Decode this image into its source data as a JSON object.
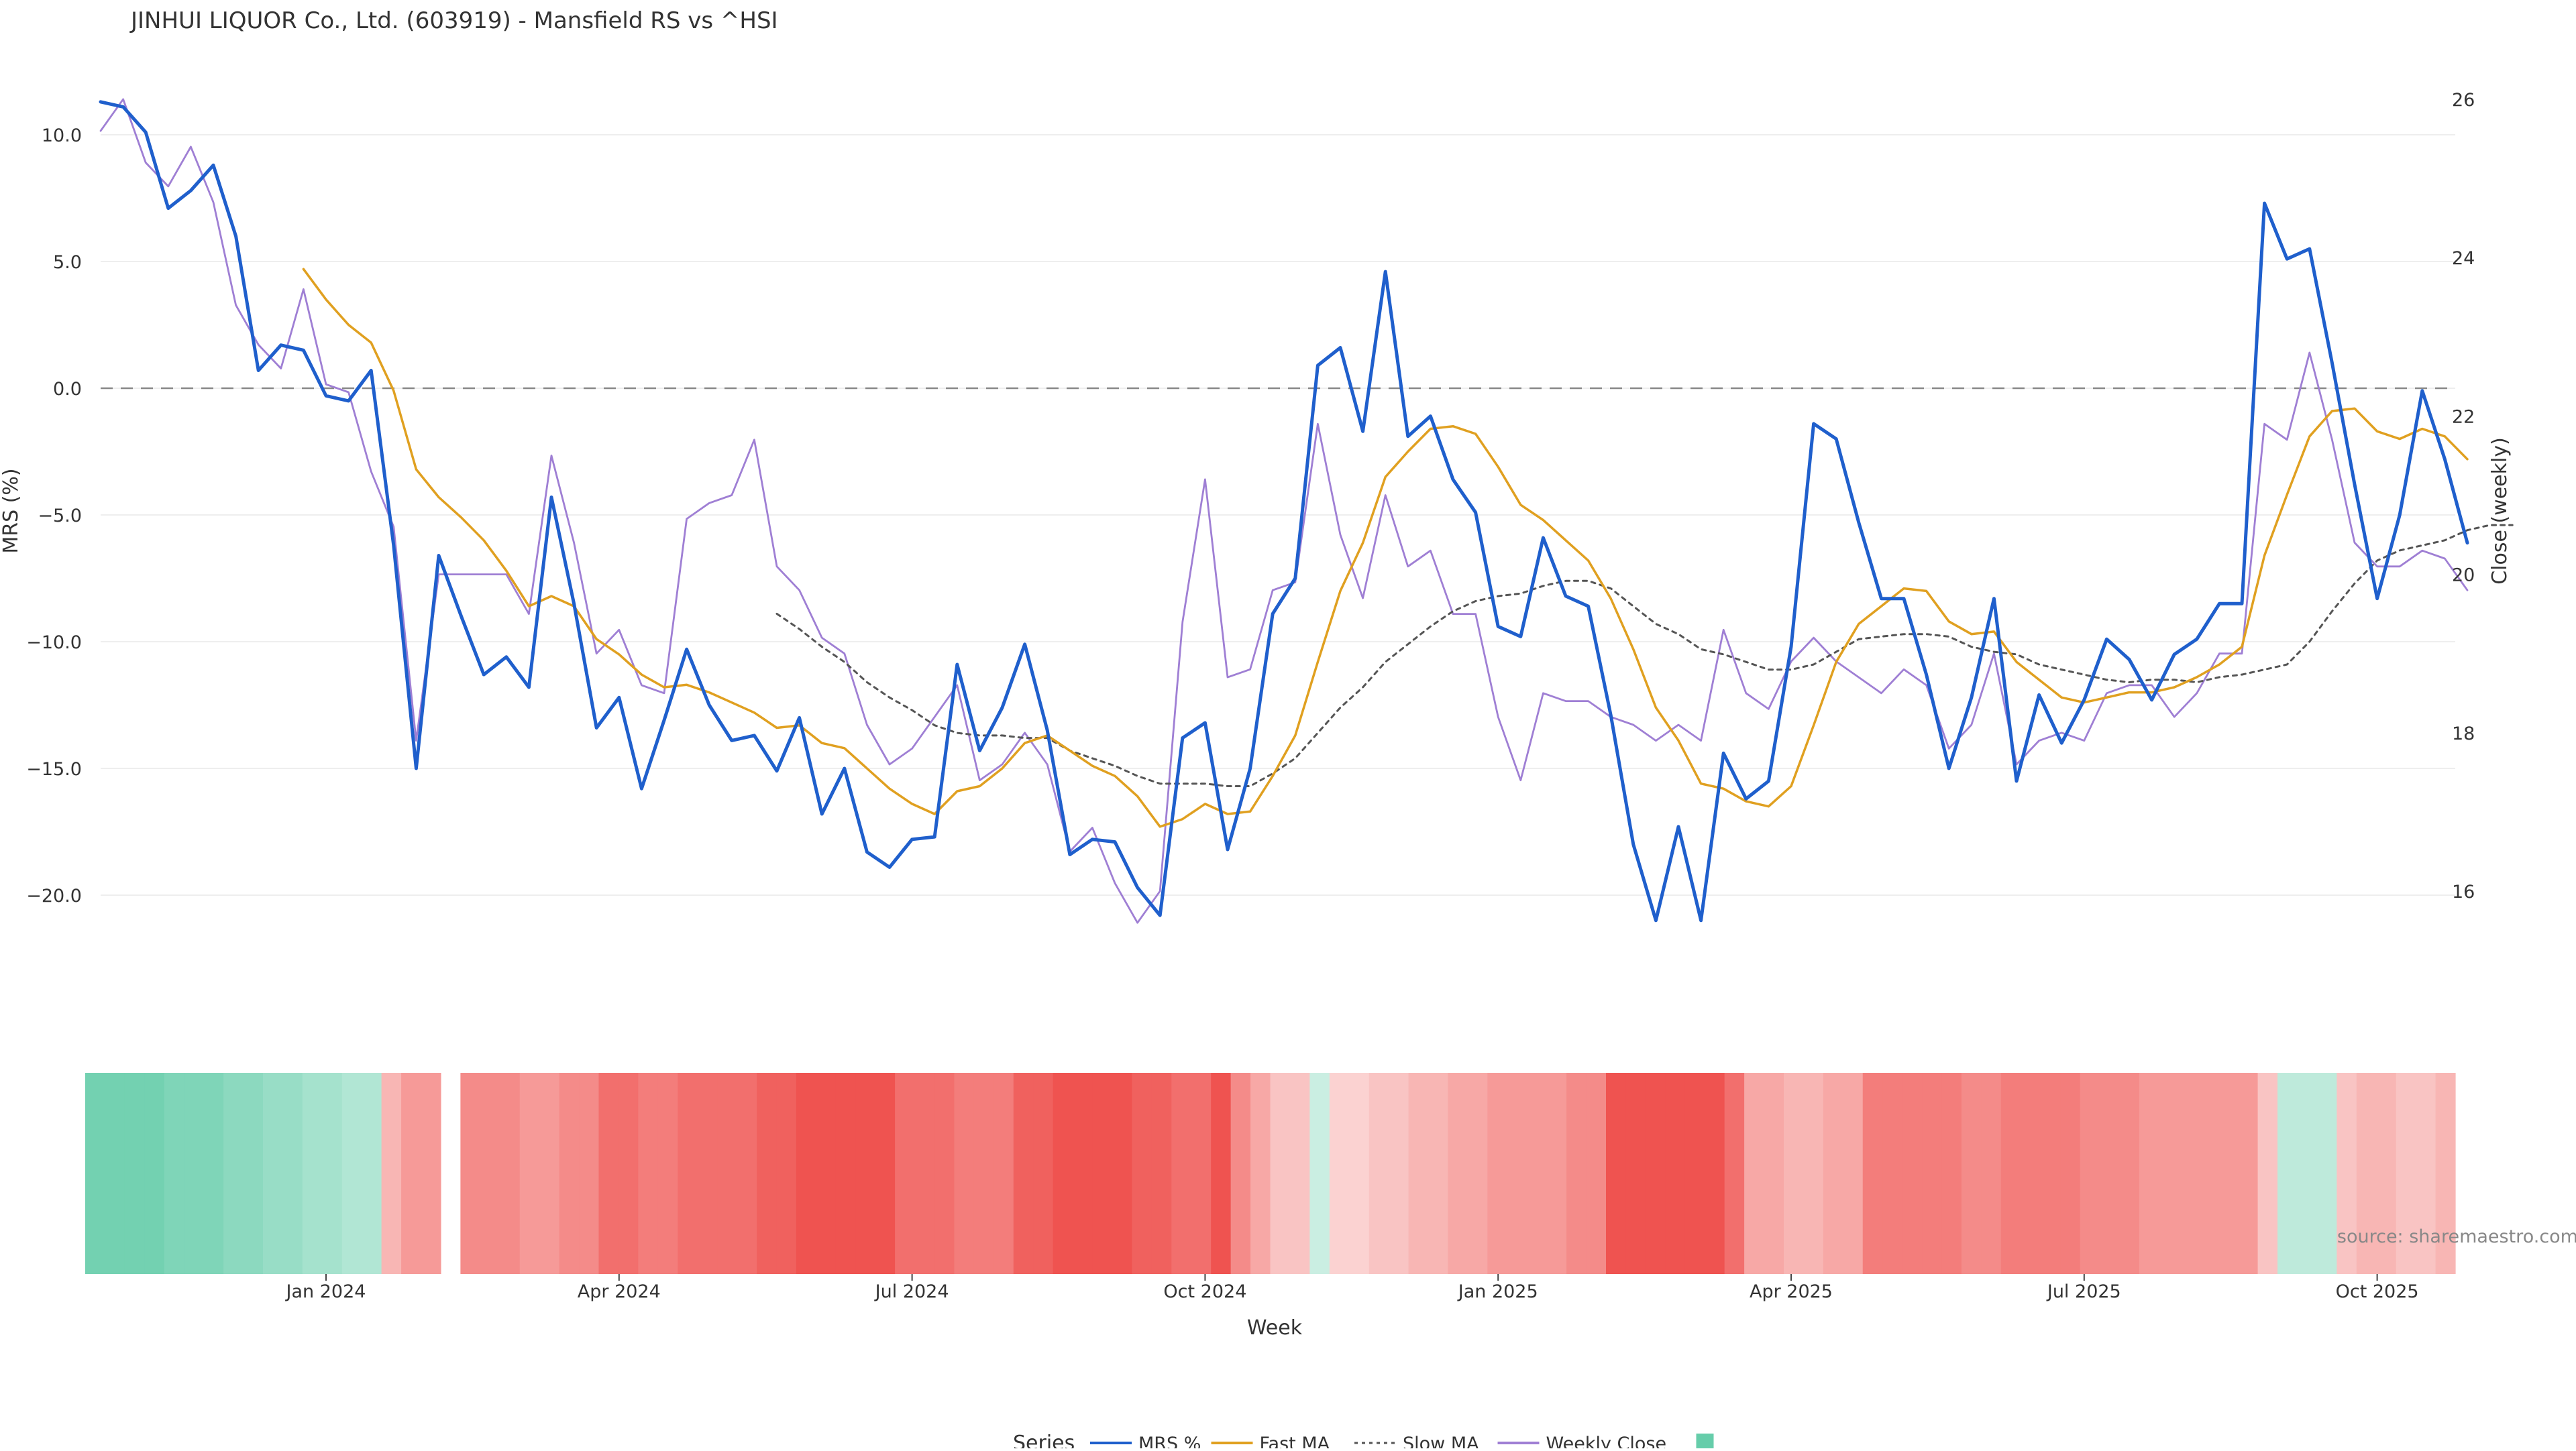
{
  "chart_data": {
    "type": "line",
    "title": "JINHUI LIQUOR Co., Ltd. (603919) - Mansfield RS vs ^HSI",
    "xlabel": "Week",
    "ylabel": "MRS (%)",
    "ylabel_right": "Close (weekly)",
    "ylim": [
      -22,
      12
    ],
    "ylim_right": [
      15,
      26
    ],
    "y_ticks": [
      10,
      5,
      0,
      -5,
      -10,
      -15,
      -20
    ],
    "y_tick_labels": [
      "10.0",
      "5.0",
      "0.0",
      "−5.0",
      "−10.0",
      "−15.0",
      "−20.0"
    ],
    "y_right_ticks": [
      26,
      24,
      22,
      20,
      18,
      16
    ],
    "y_right_tick_labels": [
      "26",
      "24",
      "22",
      "20",
      "18",
      "16"
    ],
    "x_ticks": [
      {
        "label": "Jan 2024",
        "week": 10
      },
      {
        "label": "Apr 2024",
        "week": 23
      },
      {
        "label": "Jul 2024",
        "week": 36
      },
      {
        "label": "Oct 2024",
        "week": 49
      },
      {
        "label": "Jan 2025",
        "week": 62
      },
      {
        "label": "Apr 2025",
        "week": 75
      },
      {
        "label": "Jul 2025",
        "week": 88
      },
      {
        "label": "Oct 2025",
        "week": 101
      }
    ],
    "zero_line": 0,
    "source": "source: sharemaestro.com",
    "legend_title": "Series",
    "series": [
      {
        "name": "MRS %",
        "color": "#1f5fcc",
        "style": "solid",
        "start": 0,
        "values": [
          11.3,
          11.1,
          10.1,
          7.1,
          7.8,
          8.8,
          6.0,
          0.7,
          1.7,
          1.5,
          -0.3,
          -0.5,
          0.7,
          -6.2,
          -15.0,
          -6.6,
          -9.0,
          -11.3,
          -10.6,
          -11.8,
          -4.3,
          -8.5,
          -13.4,
          -12.2,
          -15.8,
          -13.1,
          -10.3,
          -12.5,
          -13.9,
          -13.7,
          -15.1,
          -13.0,
          -16.8,
          -15.0,
          -18.3,
          -18.9,
          -17.8,
          -17.7,
          -10.9,
          -14.3,
          -12.6,
          -10.1,
          -13.5,
          -18.4,
          -17.8,
          -17.9,
          -19.7,
          -20.8,
          -13.8,
          -13.2,
          -18.2,
          -15.0,
          -8.9,
          -7.5,
          0.9,
          1.6,
          -1.7,
          4.6,
          -1.9,
          -1.1,
          -3.6,
          -4.9,
          -9.4,
          -9.8,
          -5.9,
          -8.2,
          -8.6,
          -12.9,
          -18.0,
          -21.0,
          -17.3,
          -21.0,
          -14.4,
          -16.2,
          -15.5,
          -10.2,
          -1.4,
          -2.0,
          -5.3,
          -8.3,
          -8.3,
          -11.3,
          -15.0,
          -12.2,
          -8.3,
          -15.5,
          -12.1,
          -14.0,
          -12.3,
          -9.9,
          -10.7,
          -12.3,
          -10.5,
          -9.9,
          -8.5,
          -8.5,
          7.3,
          5.1,
          5.5,
          1.0,
          -3.8,
          -8.3,
          -5.0,
          -0.1,
          -2.8,
          -6.1
        ]
      },
      {
        "name": "Fast MA",
        "color": "#e0a020",
        "style": "solid",
        "start": 9,
        "values": [
          4.7,
          3.5,
          2.5,
          1.8,
          -0.1,
          -3.2,
          -4.3,
          -5.1,
          -6.0,
          -7.2,
          -8.6,
          -8.2,
          -8.6,
          -9.9,
          -10.5,
          -11.3,
          -11.8,
          -11.7,
          -12.0,
          -12.4,
          -12.8,
          -13.4,
          -13.3,
          -14.0,
          -14.2,
          -15.0,
          -15.8,
          -16.4,
          -16.8,
          -15.9,
          -15.7,
          -15.0,
          -14.0,
          -13.7,
          -14.3,
          -14.9,
          -15.3,
          -16.1,
          -17.3,
          -17.0,
          -16.4,
          -16.8,
          -16.7,
          -15.3,
          -13.7,
          -10.8,
          -8.0,
          -6.1,
          -3.5,
          -2.5,
          -1.6,
          -1.5,
          -1.8,
          -3.1,
          -4.6,
          -5.2,
          -6.0,
          -6.8,
          -8.3,
          -10.3,
          -12.6,
          -13.9,
          -15.6,
          -15.8,
          -16.3,
          -16.5,
          -15.7,
          -13.3,
          -10.8,
          -9.3,
          -8.6,
          -7.9,
          -8.0,
          -9.2,
          -9.7,
          -9.6,
          -10.8,
          -11.5,
          -12.2,
          -12.4,
          -12.2,
          -12.0,
          -12.0,
          -11.8,
          -11.4,
          -10.9,
          -10.2,
          -6.6,
          -4.2,
          -1.9,
          -0.9,
          -0.8,
          -1.7,
          -2.0,
          -1.6,
          -1.9,
          -2.8
        ]
      },
      {
        "name": "Slow MA",
        "color": "#555555",
        "style": "dotted",
        "start": 30,
        "values": [
          -8.9,
          -9.5,
          -10.2,
          -10.8,
          -11.6,
          -12.2,
          -12.7,
          -13.3,
          -13.6,
          -13.7,
          -13.7,
          -13.8,
          -13.8,
          -14.3,
          -14.6,
          -14.9,
          -15.3,
          -15.6,
          -15.6,
          -15.6,
          -15.7,
          -15.7,
          -15.2,
          -14.6,
          -13.6,
          -12.6,
          -11.8,
          -10.8,
          -10.1,
          -9.4,
          -8.8,
          -8.4,
          -8.2,
          -8.1,
          -7.8,
          -7.6,
          -7.6,
          -7.9,
          -8.6,
          -9.3,
          -9.7,
          -10.3,
          -10.5,
          -10.8,
          -11.1,
          -11.1,
          -10.9,
          -10.4,
          -9.9,
          -9.8,
          -9.7,
          -9.7,
          -9.8,
          -10.2,
          -10.4,
          -10.5,
          -10.9,
          -11.1,
          -11.3,
          -11.5,
          -11.6,
          -11.5,
          -11.5,
          -11.6,
          -11.4,
          -11.3,
          -11.1,
          -10.9,
          -10.0,
          -8.8,
          -7.7,
          -6.8,
          -6.4,
          -6.2,
          -6.0,
          -5.6,
          -5.4,
          -5.4
        ]
      },
      {
        "name": "Weekly Close",
        "color": "#9f7fd4",
        "style": "solid",
        "axis": "right",
        "start": 0,
        "values": [
          25.6,
          26.0,
          25.2,
          24.9,
          25.4,
          24.7,
          23.4,
          22.9,
          22.6,
          23.6,
          22.4,
          22.3,
          21.3,
          20.6,
          17.9,
          20.0,
          20.0,
          20.0,
          20.0,
          19.5,
          21.5,
          20.4,
          19.0,
          19.3,
          18.6,
          18.5,
          20.7,
          20.9,
          21.0,
          21.7,
          20.1,
          19.8,
          19.2,
          19.0,
          18.1,
          17.6,
          17.8,
          18.2,
          18.6,
          17.4,
          17.6,
          18.0,
          17.6,
          16.5,
          16.8,
          16.1,
          15.6,
          16.0,
          19.4,
          21.2,
          18.7,
          18.8,
          19.8,
          19.9,
          21.9,
          20.5,
          19.7,
          21.0,
          20.1,
          20.3,
          19.5,
          19.5,
          18.2,
          17.4,
          18.5,
          18.4,
          18.4,
          18.2,
          18.1,
          17.9,
          18.1,
          17.9,
          19.3,
          18.5,
          18.3,
          18.9,
          19.2,
          18.9,
          18.7,
          18.5,
          18.8,
          18.6,
          17.8,
          18.1,
          19.0,
          17.6,
          17.9,
          18.0,
          17.9,
          18.5,
          18.6,
          18.6,
          18.2,
          18.5,
          19.0,
          19.0,
          21.9,
          21.7,
          22.8,
          21.7,
          20.4,
          20.1,
          20.1,
          20.3,
          20.2,
          19.8
        ]
      }
    ],
    "heatmap": {
      "description": "weekly MRS colour strip",
      "gap_weeks": [
        16
      ],
      "values": [
        9,
        9,
        9,
        9,
        8,
        8,
        8,
        7,
        7,
        6,
        6,
        5,
        5,
        4,
        4,
        -3,
        -5,
        -5,
        -99,
        -6,
        -6,
        -6,
        -5,
        -5,
        -6,
        -6,
        -8,
        -8,
        -7,
        -7,
        -8,
        -8,
        -8,
        -8,
        -9,
        -9,
        -10,
        -10,
        -10,
        -10,
        -10,
        -8,
        -8,
        -8,
        -7,
        -7,
        -7,
        -9,
        -9,
        -10,
        -10,
        -10,
        -10,
        -9,
        -9,
        -8,
        -8,
        -10,
        -6,
        -4,
        -2,
        -2,
        2,
        -1,
        -1,
        -2,
        -2,
        -3,
        -3,
        -4,
        -4,
        -5,
        -5,
        -5,
        -5,
        -6,
        -6,
        -10,
        -10,
        -10,
        -10,
        -10,
        -10,
        -8,
        -4,
        -4,
        -3,
        -3,
        -4,
        -4,
        -7,
        -7,
        -7,
        -7,
        -7,
        -6,
        -6,
        -7,
        -7,
        -7,
        -7,
        -6,
        -6,
        -6,
        -5,
        -5,
        -5,
        -5,
        -5,
        -5,
        -2,
        3,
        3,
        3,
        -2,
        -3,
        -3,
        -2,
        -2,
        -3
      ],
      "colors": {
        "positive": "#66cdaa",
        "negative": "#ef5350"
      }
    },
    "legend_entries": [
      {
        "name": "MRS %",
        "color": "#1f5fcc",
        "style": "solid"
      },
      {
        "name": "Fast MA",
        "color": "#e0a020",
        "style": "solid"
      },
      {
        "name": "Slow MA",
        "color": "#555555",
        "style": "dotted"
      },
      {
        "name": "Weekly Close",
        "color": "#9f7fd4",
        "style": "solid"
      },
      {
        "name": "",
        "color": "#66cdaa",
        "style": "square"
      }
    ]
  }
}
